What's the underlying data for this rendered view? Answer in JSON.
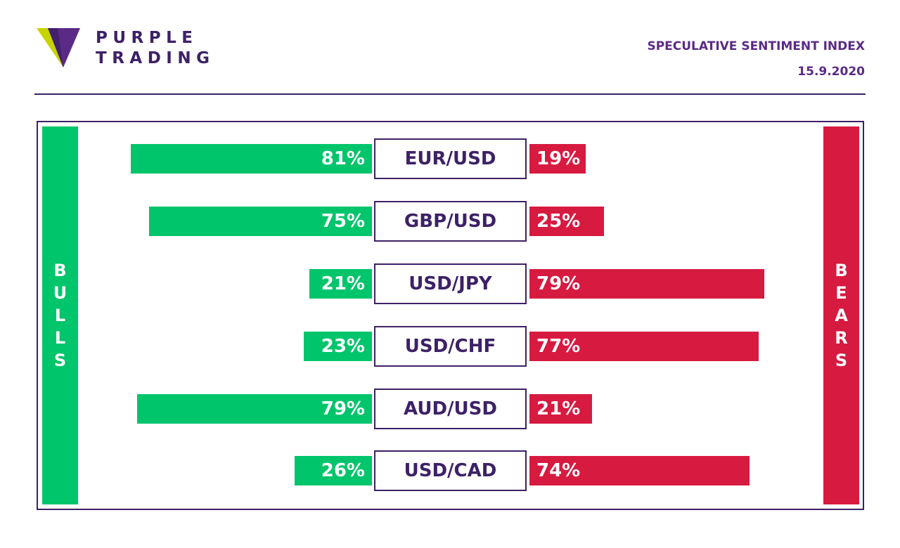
{
  "brand": {
    "line1": "PURPLE",
    "line2": "TRADING",
    "logo_icon": "purple-triangle-logo-icon",
    "colors": {
      "purple": "#3d2166",
      "accent_purple": "#5b2a86",
      "lime": "#c8d400"
    }
  },
  "report": {
    "title": "SPECULATIVE SENTIMENT INDEX",
    "date": "15.9.2020"
  },
  "sides": {
    "bulls_label": [
      "B",
      "U",
      "L",
      "L",
      "S"
    ],
    "bears_label": [
      "B",
      "E",
      "A",
      "R",
      "S"
    ]
  },
  "chart_data": {
    "type": "bar",
    "orientation": "horizontal-diverging",
    "categories": [
      "EUR/USD",
      "GBP/USD",
      "USD/JPY",
      "USD/CHF",
      "AUD/USD",
      "USD/CAD"
    ],
    "series": [
      {
        "name": "BULLS",
        "color": "#00c56b",
        "values": [
          81,
          75,
          21,
          23,
          79,
          26
        ]
      },
      {
        "name": "BEARS",
        "color": "#d71a40",
        "values": [
          19,
          25,
          79,
          77,
          21,
          74
        ]
      }
    ],
    "unit": "%",
    "labels": {
      "bulls": [
        "81%",
        "75%",
        "21%",
        "23%",
        "79%",
        "26%"
      ],
      "bears": [
        "19%",
        "25%",
        "79%",
        "77%",
        "21%",
        "74%"
      ]
    },
    "xlim": [
      0,
      100
    ]
  }
}
